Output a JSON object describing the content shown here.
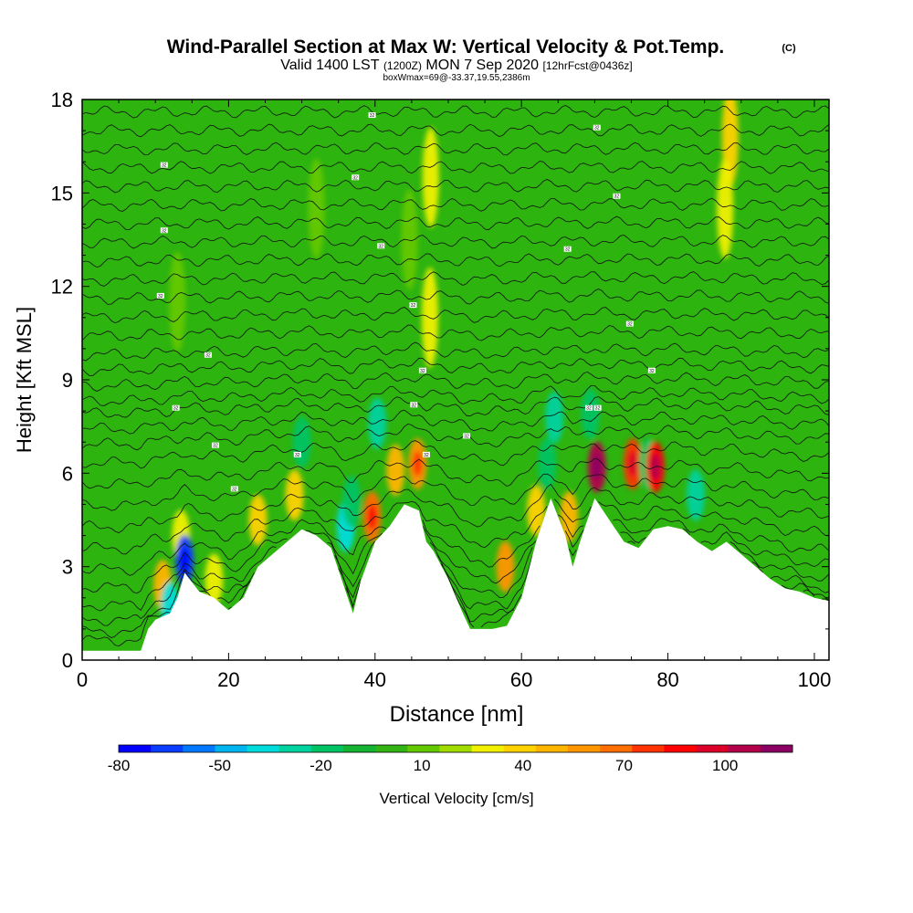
{
  "chart_data": {
    "type": "heatmap",
    "title": "Wind-Parallel Section at Max W: Vertical Velocity & Pot.Temp.",
    "copyright": "(C)",
    "subtitle_main": "Valid 1400 LST",
    "subtitle_utc": "(1200Z)",
    "subtitle_date": "MON 7 Sep 2020",
    "subtitle_fcst": "[12hrFcst@0436z]",
    "box_info": "boxWmax=69@-33.37,19.55,2386m",
    "xlabel": "Distance [nm]",
    "ylabel": "Height [Kft MSL]",
    "xlim": [
      0,
      102
    ],
    "ylim": [
      0,
      18
    ],
    "x_ticks": [
      0,
      20,
      40,
      60,
      80,
      100
    ],
    "y_ticks": [
      0,
      3,
      6,
      9,
      12,
      15,
      18
    ],
    "colorbar": {
      "label": "Vertical Velocity [cm/s]",
      "tick_labels": [
        "-80",
        "-50",
        "-20",
        "10",
        "40",
        "70",
        "100"
      ],
      "tick_values": [
        -80,
        -50,
        -20,
        10,
        40,
        70,
        100
      ],
      "range": [
        -80,
        120
      ],
      "colors": [
        "#0000ff",
        "#0a3cff",
        "#0078ff",
        "#00b4f0",
        "#00dcdc",
        "#00d2a0",
        "#00c364",
        "#14b432",
        "#32b414",
        "#64c800",
        "#a0dc00",
        "#f0f000",
        "#ffd200",
        "#ffb400",
        "#ff9600",
        "#ff6e00",
        "#ff3200",
        "#ff0000",
        "#dc0028",
        "#b4004b",
        "#8c0064"
      ]
    },
    "terrain": [
      [
        0,
        0.3
      ],
      [
        8,
        0.3
      ],
      [
        9,
        1.0
      ],
      [
        10,
        1.3
      ],
      [
        12,
        1.5
      ],
      [
        13,
        2.0
      ],
      [
        14,
        2.8
      ],
      [
        16,
        2.2
      ],
      [
        18,
        2.0
      ],
      [
        20,
        1.6
      ],
      [
        22,
        2.0
      ],
      [
        24,
        3.0
      ],
      [
        26,
        3.4
      ],
      [
        28,
        3.8
      ],
      [
        30,
        4.2
      ],
      [
        32,
        4.0
      ],
      [
        34,
        3.6
      ],
      [
        36,
        2.2
      ],
      [
        37,
        1.5
      ],
      [
        38,
        2.5
      ],
      [
        40,
        3.8
      ],
      [
        42,
        4.3
      ],
      [
        44,
        5.0
      ],
      [
        46,
        4.8
      ],
      [
        47,
        3.8
      ],
      [
        48,
        3.5
      ],
      [
        50,
        2.6
      ],
      [
        52,
        1.5
      ],
      [
        53,
        1.0
      ],
      [
        56,
        1.0
      ],
      [
        58,
        1.1
      ],
      [
        60,
        2.0
      ],
      [
        62,
        3.8
      ],
      [
        64,
        5.2
      ],
      [
        66,
        4.0
      ],
      [
        67,
        3.0
      ],
      [
        68,
        3.8
      ],
      [
        70,
        5.2
      ],
      [
        72,
        4.5
      ],
      [
        74,
        3.8
      ],
      [
        76,
        3.6
      ],
      [
        78,
        4.2
      ],
      [
        80,
        4.3
      ],
      [
        82,
        4.2
      ],
      [
        84,
        3.8
      ],
      [
        86,
        3.5
      ],
      [
        88,
        3.8
      ],
      [
        90,
        3.4
      ],
      [
        92,
        3.0
      ],
      [
        94,
        2.6
      ],
      [
        96,
        2.3
      ],
      [
        98,
        2.2
      ],
      [
        100,
        2.0
      ],
      [
        102,
        1.9
      ]
    ],
    "w_features": [
      {
        "x": 11,
        "z": 2.4,
        "w": 45
      },
      {
        "x": 13.5,
        "z": 4.0,
        "w": 30
      },
      {
        "x": 14,
        "z": 3.2,
        "w": -70
      },
      {
        "x": 12,
        "z": 1.7,
        "w": -40
      },
      {
        "x": 18,
        "z": 2.6,
        "w": 25
      },
      {
        "x": 24,
        "z": 4.5,
        "w": 35
      },
      {
        "x": 29,
        "z": 5.3,
        "w": 40
      },
      {
        "x": 30,
        "z": 7.0,
        "w": -20
      },
      {
        "x": 36,
        "z": 4.3,
        "w": -35
      },
      {
        "x": 36.8,
        "z": 5.1,
        "w": -20
      },
      {
        "x": 39.6,
        "z": 4.6,
        "w": 65
      },
      {
        "x": 40.3,
        "z": 7.6,
        "w": -30
      },
      {
        "x": 42.8,
        "z": 6.1,
        "w": 50
      },
      {
        "x": 45.8,
        "z": 6.3,
        "w": 60
      },
      {
        "x": 47.6,
        "z": 15.5,
        "w": 30
      },
      {
        "x": 47.5,
        "z": 11.0,
        "w": 25
      },
      {
        "x": 44.7,
        "z": 13.5,
        "w": 12
      },
      {
        "x": 57.8,
        "z": 3.0,
        "w": 55
      },
      {
        "x": 63.5,
        "z": 6.3,
        "w": -20
      },
      {
        "x": 64.5,
        "z": 7.8,
        "w": -30
      },
      {
        "x": 62,
        "z": 4.8,
        "w": 35
      },
      {
        "x": 66.5,
        "z": 4.6,
        "w": 45
      },
      {
        "x": 70.3,
        "z": 6.2,
        "w": 110
      },
      {
        "x": 69.4,
        "z": 7.9,
        "w": -20
      },
      {
        "x": 75.2,
        "z": 6.3,
        "w": 75
      },
      {
        "x": 77.3,
        "z": 6.3,
        "w": -15
      },
      {
        "x": 78.3,
        "z": 6.2,
        "w": 85
      },
      {
        "x": 83.8,
        "z": 5.3,
        "w": -30
      },
      {
        "x": 88.5,
        "z": 16.8,
        "w": 35
      },
      {
        "x": 87.8,
        "z": 14.5,
        "w": 25
      },
      {
        "x": 13,
        "z": 11.5,
        "w": 12
      },
      {
        "x": 32,
        "z": 14.5,
        "w": 8
      }
    ],
    "theta_contours": [
      0.4,
      0.7,
      1.1,
      1.6,
      2.2,
      2.8,
      3.5,
      4.2,
      4.9,
      5.6,
      6.3,
      6.9,
      7.4,
      7.9,
      8.3,
      8.8,
      9.3,
      9.8,
      10.4,
      11.0,
      11.6,
      12.2,
      12.8,
      13.4,
      14.0,
      14.6,
      15.2,
      15.8,
      16.4,
      17.0,
      17.6
    ],
    "contour_labels": [
      {
        "x": 11.2,
        "z": 15.9,
        "t": "32"
      },
      {
        "x": 11.2,
        "z": 13.8,
        "t": "32"
      },
      {
        "x": 10.7,
        "z": 11.7,
        "t": "32"
      },
      {
        "x": 17.2,
        "z": 9.8,
        "t": "32"
      },
      {
        "x": 12.8,
        "z": 8.1,
        "t": "32"
      },
      {
        "x": 18.2,
        "z": 6.9,
        "t": "32"
      },
      {
        "x": 20.8,
        "z": 5.5,
        "t": "32"
      },
      {
        "x": 29.4,
        "z": 6.6,
        "t": "32"
      },
      {
        "x": 39.6,
        "z": 17.5,
        "t": "32"
      },
      {
        "x": 37.3,
        "z": 15.5,
        "t": "32"
      },
      {
        "x": 40.8,
        "z": 13.3,
        "t": "32"
      },
      {
        "x": 45.2,
        "z": 11.4,
        "t": "32"
      },
      {
        "x": 46.5,
        "z": 9.3,
        "t": "32"
      },
      {
        "x": 45.3,
        "z": 8.2,
        "t": "32"
      },
      {
        "x": 47.0,
        "z": 6.6,
        "t": "32"
      },
      {
        "x": 52.5,
        "z": 7.2,
        "t": "32"
      },
      {
        "x": 70.3,
        "z": 17.1,
        "t": "32"
      },
      {
        "x": 73.0,
        "z": 14.9,
        "t": "32"
      },
      {
        "x": 66.3,
        "z": 13.2,
        "t": "32"
      },
      {
        "x": 74.8,
        "z": 10.8,
        "t": "32"
      },
      {
        "x": 77.8,
        "z": 9.3,
        "t": "32"
      },
      {
        "x": 69.2,
        "z": 8.1,
        "t": "32"
      },
      {
        "x": 70.4,
        "z": 8.1,
        "t": "32"
      }
    ]
  }
}
